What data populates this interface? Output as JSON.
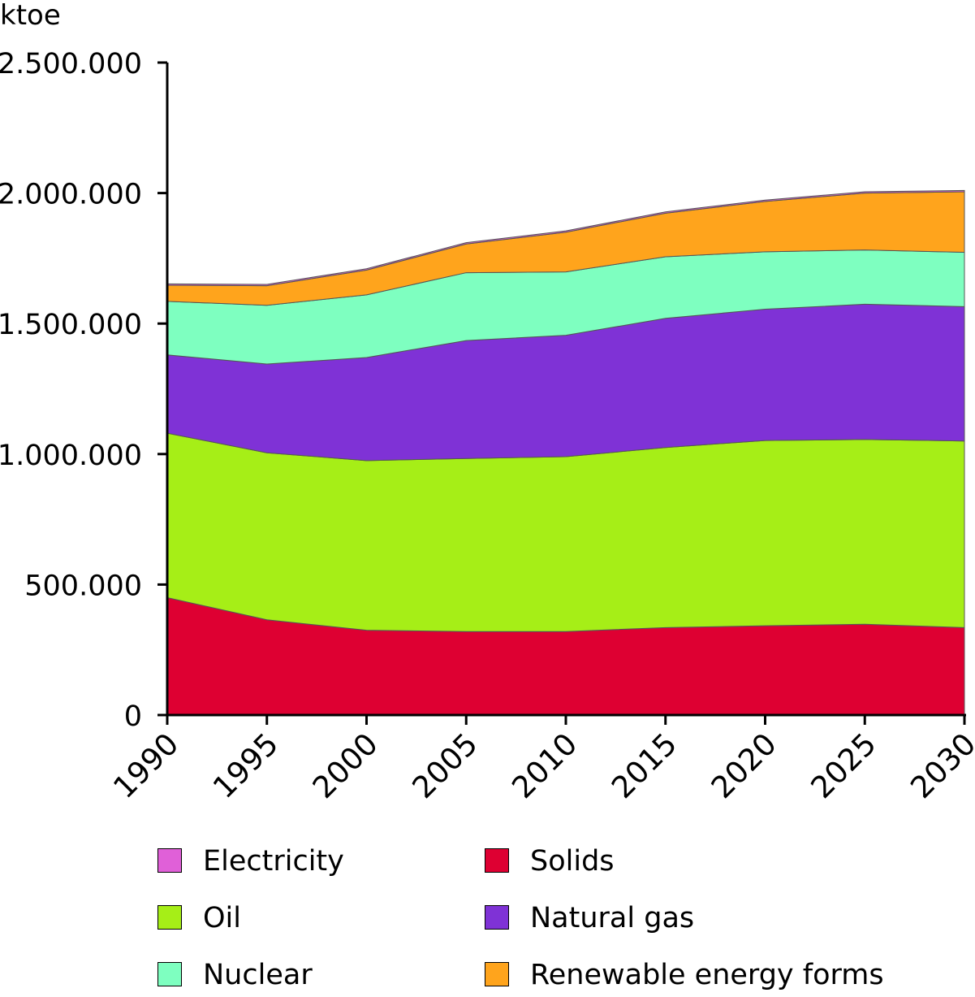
{
  "chart_data": {
    "type": "area",
    "stacked": true,
    "ylabel": "ktoe",
    "xlabel": "",
    "title": "",
    "ylim": [
      0,
      2500000
    ],
    "yticks": [
      0,
      500000,
      1000000,
      1500000,
      2000000,
      2500000
    ],
    "ytick_labels": [
      "0",
      "500.000",
      "1.000.000",
      "1.500.000",
      "2.000.000",
      "2.500.000"
    ],
    "x": [
      "1990",
      "1995",
      "2000",
      "2005",
      "2010",
      "2015",
      "2020",
      "2025",
      "2030"
    ],
    "grid": false,
    "legend_position": "bottom",
    "series": [
      {
        "name": "Solids",
        "color": "#de0032",
        "values": [
          450000,
          365000,
          325000,
          320000,
          320000,
          335000,
          342000,
          348000,
          335000
        ]
      },
      {
        "name": "Oil",
        "color": "#a6ee17",
        "values": [
          630000,
          640000,
          650000,
          663000,
          670000,
          690000,
          710000,
          708000,
          715000
        ]
      },
      {
        "name": "Natural gas",
        "color": "#7f32d6",
        "values": [
          300000,
          340000,
          395000,
          452000,
          465000,
          495000,
          503000,
          518000,
          515000
        ]
      },
      {
        "name": "Nuclear",
        "color": "#7effc0",
        "values": [
          205000,
          225000,
          240000,
          260000,
          243000,
          236000,
          220000,
          208000,
          208000
        ]
      },
      {
        "name": "Renewable energy forms",
        "color": "#ffa41c",
        "values": [
          62000,
          75000,
          95000,
          110000,
          152000,
          167000,
          193000,
          218000,
          232000
        ]
      },
      {
        "name": "Electricity",
        "color": "#e060d8",
        "values": [
          5000,
          5000,
          5000,
          5000,
          5000,
          5000,
          5000,
          5000,
          5000
        ]
      }
    ]
  },
  "legend": [
    {
      "label": "Electricity",
      "color": "#e060d8"
    },
    {
      "label": "Solids",
      "color": "#de0032"
    },
    {
      "label": "Oil",
      "color": "#a6ee17"
    },
    {
      "label": "Natural gas",
      "color": "#7f32d6"
    },
    {
      "label": "Nuclear",
      "color": "#7effc0"
    },
    {
      "label": "Renewable energy forms",
      "color": "#ffa41c"
    }
  ]
}
